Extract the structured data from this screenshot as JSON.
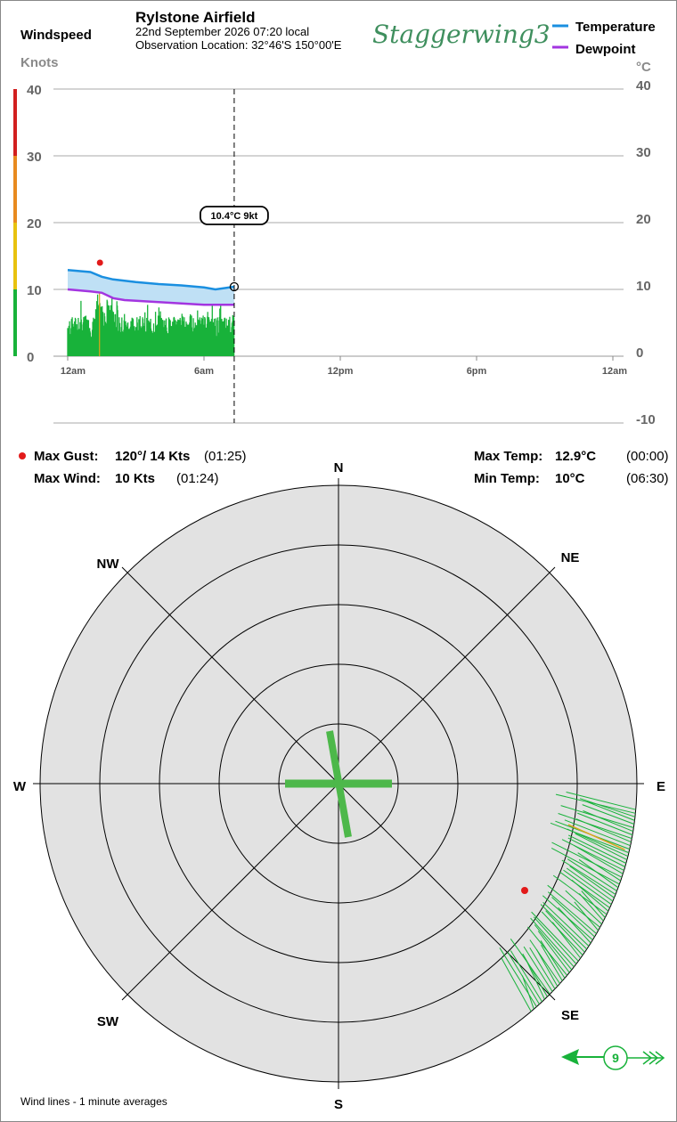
{
  "header": {
    "windspeed_label": "Windspeed",
    "units_left": "Knots",
    "station_name": "Rylstone Airfield",
    "date_time": "22nd September 2026  07:20 local",
    "obs_location": "Observation Location:  32°46'S 150°00'E",
    "logo_text": "Staggerwing3"
  },
  "legend": {
    "temperature": "Temperature",
    "dewpoint": "Dewpoint",
    "temperature_color": "#1a8fe0",
    "dewpoint_color": "#a335e0",
    "units_right": "°C"
  },
  "timeline": {
    "left_ticks": [
      "40",
      "30",
      "20",
      "10",
      "0"
    ],
    "right_ticks": [
      "40",
      "30",
      "20",
      "10",
      "0",
      "-10"
    ],
    "x_ticks": [
      "12am",
      "6am",
      "12pm",
      "6pm",
      "12am"
    ],
    "cursor_label": "10.4°C  9kt"
  },
  "chart_data": {
    "type": "line",
    "x_range_hours": [
      0,
      24
    ],
    "cursor_time_hours": 7.33,
    "wind_ylim": [
      0,
      40
    ],
    "temp_ylim": [
      -10,
      40
    ],
    "series": [
      {
        "name": "Temperature",
        "x": [
          0,
          1,
          1.5,
          2,
          3,
          4,
          5,
          6,
          6.5,
          7.33
        ],
        "y": [
          12.9,
          12.6,
          11.9,
          11.5,
          11.1,
          10.8,
          10.6,
          10.3,
          10.0,
          10.4
        ]
      },
      {
        "name": "Dewpoint",
        "x": [
          0,
          1,
          1.5,
          2,
          2.5,
          3,
          4,
          5,
          6,
          7.33
        ],
        "y": [
          10.0,
          9.7,
          9.5,
          8.7,
          8.4,
          8.3,
          8.1,
          7.9,
          7.7,
          7.7
        ]
      }
    ],
    "max_gust_marker": {
      "time_hours": 1.42,
      "knots": 14
    },
    "wind_speed_color_bands": [
      "#18b23a",
      "#e8c20f",
      "#e88a1f",
      "#d21f1f"
    ]
  },
  "stats": {
    "max_gust_label": "Max Gust:",
    "max_gust_value": "120°/  14 Kts",
    "max_gust_time": "(01:25)",
    "max_wind_label": "Max Wind:",
    "max_wind_value": "10 Kts",
    "max_wind_time": "(01:24)",
    "max_temp_label": "Max Temp:",
    "max_temp_value": "12.9°C",
    "max_temp_time": "(00:00)",
    "min_temp_label": "Min Temp:",
    "min_temp_value": "10°C",
    "min_temp_time": "(06:30)"
  },
  "compass": {
    "N": "N",
    "NE": "NE",
    "E": "E",
    "SE": "SE",
    "S": "S",
    "SW": "SW",
    "W": "W",
    "NW": "NW",
    "current_speed": "9",
    "wind_color": "#18b23a"
  },
  "footer": {
    "note": "Wind lines - 1 minute averages"
  }
}
